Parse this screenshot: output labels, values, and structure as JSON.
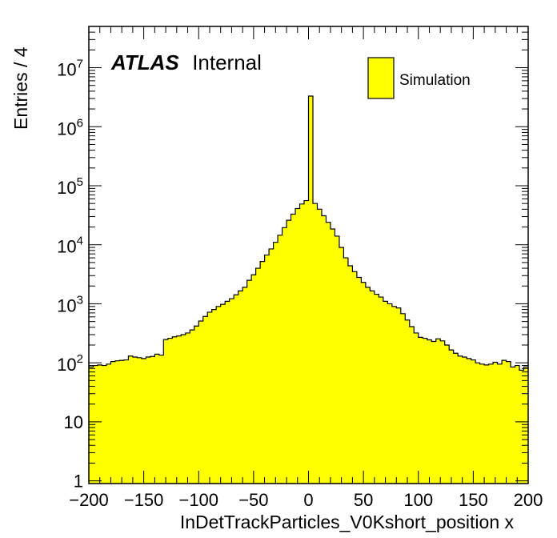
{
  "chart_data": {
    "type": "bar",
    "histogram": true,
    "xlabel": "InDetTrackParticles_V0Kshort_position x",
    "ylabel": "Entries / 4",
    "xlim": [
      -200,
      200
    ],
    "ylim": [
      0.9,
      50000000
    ],
    "yscale": "log",
    "bin_width": 4,
    "x_ticks": [
      -200,
      -150,
      -100,
      -50,
      0,
      50,
      100,
      150,
      200
    ],
    "x_tick_labels": [
      "−200",
      "−150",
      "−100",
      "−50",
      "0",
      "50",
      "100",
      "150",
      "200"
    ],
    "y_ticks": [
      {
        "value": 1,
        "base": "1",
        "exp": ""
      },
      {
        "value": 10,
        "base": "10",
        "exp": ""
      },
      {
        "value": 100,
        "base": "10",
        "exp": "2"
      },
      {
        "value": 1000,
        "base": "10",
        "exp": "3"
      },
      {
        "value": 10000,
        "base": "10",
        "exp": "4"
      },
      {
        "value": 100000,
        "base": "10",
        "exp": "5"
      },
      {
        "value": 1000000,
        "base": "10",
        "exp": "6"
      },
      {
        "value": 10000000,
        "base": "10",
        "exp": "7"
      }
    ],
    "fill_color": "#ffff00",
    "line_color": "#000000",
    "legend": {
      "entries": [
        "Simulation"
      ],
      "position": "top-right"
    },
    "annotation": {
      "bold": "ATLAS",
      "text": "Internal"
    },
    "series": [
      {
        "name": "Simulation",
        "bin_edges_start": -200,
        "values": [
          85,
          90,
          92,
          90,
          95,
          105,
          108,
          110,
          112,
          130,
          125,
          122,
          118,
          125,
          128,
          140,
          135,
          248,
          260,
          275,
          285,
          300,
          320,
          360,
          420,
          510,
          610,
          720,
          800,
          900,
          980,
          1100,
          1220,
          1420,
          1650,
          1900,
          2500,
          3100,
          4000,
          5200,
          6700,
          8500,
          11000,
          14500,
          19500,
          26000,
          33000,
          41000,
          49000,
          56000,
          3300000,
          50000,
          40000,
          31000,
          24000,
          18500,
          14000,
          9000,
          6000,
          4400,
          3500,
          2800,
          2300,
          1900,
          1650,
          1450,
          1300,
          1100,
          1000,
          900,
          850,
          680,
          530,
          410,
          320,
          270,
          260,
          245,
          230,
          255,
          235,
          200,
          165,
          145,
          130,
          125,
          118,
          112,
          100,
          95,
          92,
          95,
          102,
          95,
          110,
          105,
          85,
          90,
          75,
          85
        ]
      }
    ]
  }
}
